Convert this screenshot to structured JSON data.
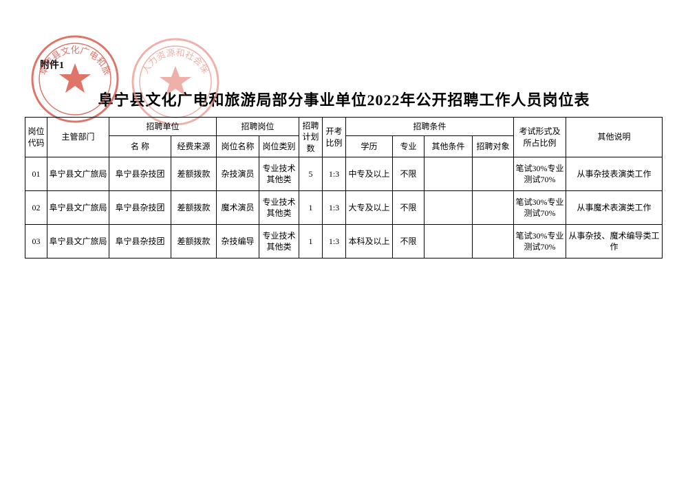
{
  "attachment_label": "附件1",
  "title": "阜宁县文化广电和旅游局部分事业单位2022年公开招聘工作人员岗位表",
  "stamp1_color": "#d23a2a",
  "stamp2_color": "#e98f86",
  "header": {
    "code": "岗位代码",
    "dept": "主管部门",
    "recruit_unit_group": "招聘单位",
    "unit_name": "名  称",
    "fund": "经费来源",
    "recruit_post_group": "招聘岗位",
    "job_name": "岗位名称",
    "job_type": "岗位类别",
    "plan": "招聘计划数",
    "ratio": "开考比例",
    "cond_group": "招聘条件",
    "edu": "学历",
    "major": "专业",
    "other_cond": "其他条件",
    "target": "招聘对象",
    "exam": "考试形式及所占比例",
    "note": "其他说明"
  },
  "rows": [
    {
      "code": "01",
      "dept": "阜宁县文广旅局",
      "unit": "阜宁县杂技团",
      "fund": "差额拨款",
      "job_name": "杂技演员",
      "job_type": "专业技术其他类",
      "plan": "5",
      "ratio": "1:3",
      "edu": "中专及以上",
      "major": "不限",
      "other": "",
      "target": "",
      "exam": "笔试30%专业测试70%",
      "note": "从事杂技表演类工作"
    },
    {
      "code": "02",
      "dept": "阜宁县文广旅局",
      "unit": "阜宁县杂技团",
      "fund": "差额拨款",
      "job_name": "魔术演员",
      "job_type": "专业技术其他类",
      "plan": "1",
      "ratio": "1:3",
      "edu": "大专及以上",
      "major": "不限",
      "other": "",
      "target": "",
      "exam": "笔试30%专业测试70%",
      "note": "从事魔术表演类工作"
    },
    {
      "code": "03",
      "dept": "阜宁县文广旅局",
      "unit": "阜宁县杂技团",
      "fund": "差额拨款",
      "job_name": "杂技编导",
      "job_type": "专业技术其他类",
      "plan": "1",
      "ratio": "1:3",
      "edu": "本科及以上",
      "major": "不限",
      "other": "",
      "target": "",
      "exam": "笔试30%专业测试70%",
      "note": "从事杂技、魔术编导类工作"
    }
  ]
}
